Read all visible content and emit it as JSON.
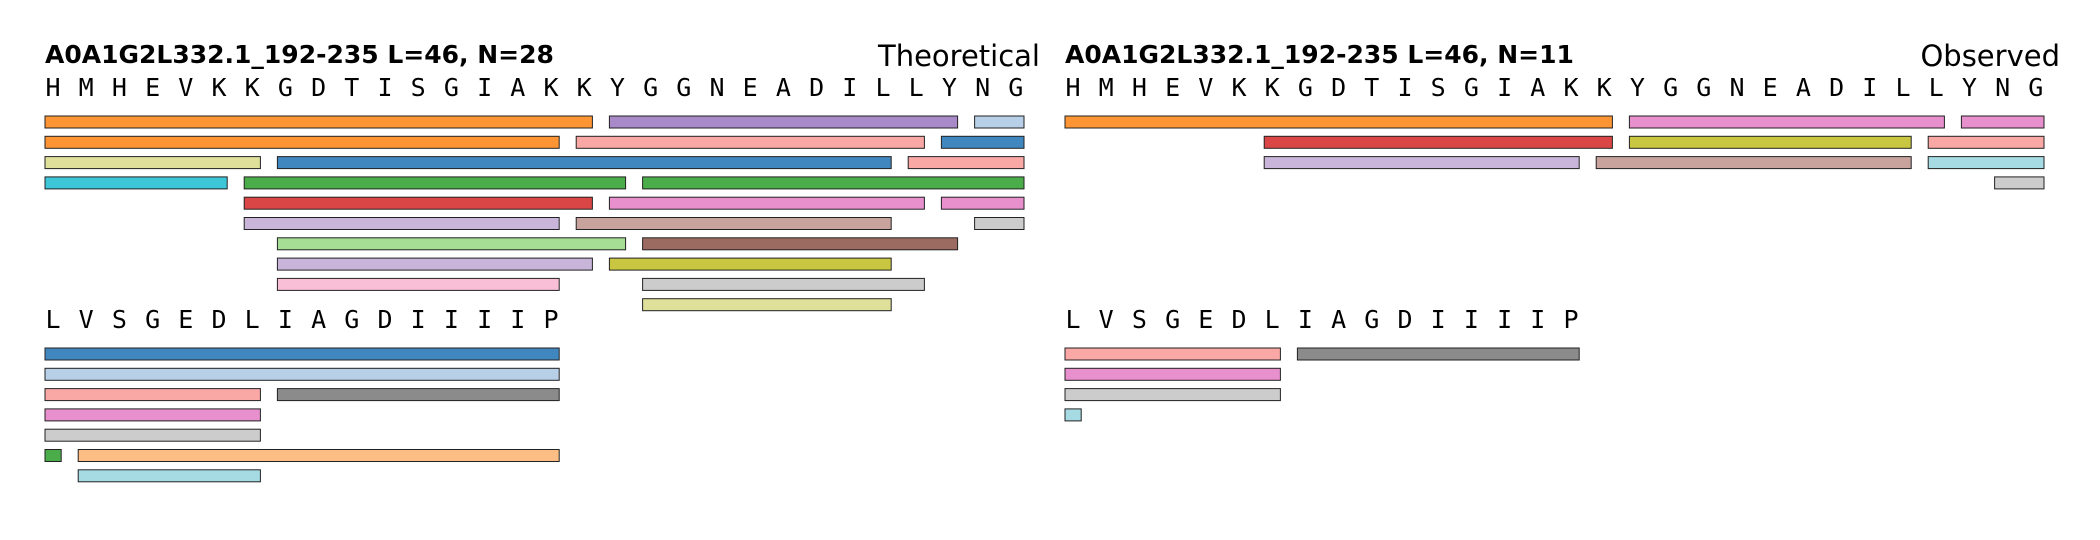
{
  "colors": {
    "orange": "#fd9535",
    "purple": "#a88ac8",
    "lightblue": "#b8cfe8",
    "salmon": "#f9a8a6",
    "blue": "#4187bf",
    "khaki": "#dfe09a",
    "cyan": "#3cc6d7",
    "green": "#4bad4a",
    "red": "#da4646",
    "pink": "#e88fcd",
    "lavender": "#c9b5da",
    "rosybrown": "#c8a39d",
    "lightgray": "#cccccc",
    "lightgreen": "#a7de95",
    "brown": "#9b6a60",
    "olive": "#c9c741",
    "lightpink": "#f8bfd6",
    "gray": "#8b8b8b",
    "peach": "#fcbe84",
    "paleblue": "#a6dbe4"
  },
  "panels": [
    {
      "id": "theoretical",
      "header": "A0A1G2L332.1_192-235  L=46, N=28",
      "label": "Theoretical",
      "lines": [
        {
          "residues": [
            "H",
            "M",
            "H",
            "E",
            "V",
            "K",
            "K",
            "G",
            "D",
            "T",
            "I",
            "S",
            "G",
            "I",
            "A",
            "K",
            "K",
            "Y",
            "G",
            "G",
            "N",
            "E",
            "A",
            "D",
            "I",
            "L",
            "L",
            "Y",
            "N",
            "G"
          ],
          "bars": [
            {
              "row": 0,
              "start": 1,
              "end": 17,
              "color": "orange"
            },
            {
              "row": 0,
              "start": 18,
              "end": 28,
              "color": "purple"
            },
            {
              "row": 0,
              "start": 29,
              "end": 30,
              "color": "lightblue"
            },
            {
              "row": 1,
              "start": 1,
              "end": 16,
              "color": "orange"
            },
            {
              "row": 1,
              "start": 17,
              "end": 27,
              "color": "salmon"
            },
            {
              "row": 1,
              "start": 28,
              "end": 30,
              "color": "blue"
            },
            {
              "row": 2,
              "start": 1,
              "end": 7,
              "color": "khaki"
            },
            {
              "row": 2,
              "start": 8,
              "end": 26,
              "color": "blue"
            },
            {
              "row": 2,
              "start": 27,
              "end": 30,
              "color": "salmon"
            },
            {
              "row": 3,
              "start": 1,
              "end": 6,
              "color": "cyan"
            },
            {
              "row": 3,
              "start": 7,
              "end": 18,
              "color": "green"
            },
            {
              "row": 3,
              "start": 19,
              "end": 30,
              "color": "green"
            },
            {
              "row": 4,
              "start": 7,
              "end": 17,
              "color": "red"
            },
            {
              "row": 4,
              "start": 18,
              "end": 27,
              "color": "pink"
            },
            {
              "row": 4,
              "start": 28,
              "end": 30,
              "color": "pink"
            },
            {
              "row": 5,
              "start": 7,
              "end": 16,
              "color": "lavender"
            },
            {
              "row": 5,
              "start": 17,
              "end": 26,
              "color": "rosybrown"
            },
            {
              "row": 5,
              "start": 29,
              "end": 30,
              "color": "lightgray"
            },
            {
              "row": 6,
              "start": 8,
              "end": 18,
              "color": "lightgreen"
            },
            {
              "row": 6,
              "start": 19,
              "end": 28,
              "color": "brown"
            },
            {
              "row": 7,
              "start": 8,
              "end": 17,
              "color": "lavender"
            },
            {
              "row": 7,
              "start": 18,
              "end": 26,
              "color": "olive"
            },
            {
              "row": 8,
              "start": 8,
              "end": 16,
              "color": "lightpink"
            },
            {
              "row": 8,
              "start": 19,
              "end": 27,
              "color": "lightgray"
            },
            {
              "row": 9,
              "start": 19,
              "end": 26,
              "color": "khaki"
            }
          ]
        },
        {
          "residues": [
            "L",
            "V",
            "S",
            "G",
            "E",
            "D",
            "L",
            "I",
            "A",
            "G",
            "D",
            "I",
            "I",
            "I",
            "I",
            "P"
          ],
          "bars": [
            {
              "row": 0,
              "start": 1,
              "end": 16,
              "color": "blue"
            },
            {
              "row": 1,
              "start": 1,
              "end": 16,
              "color": "lightblue"
            },
            {
              "row": 2,
              "start": 1,
              "end": 7,
              "color": "salmon"
            },
            {
              "row": 2,
              "start": 8,
              "end": 16,
              "color": "gray"
            },
            {
              "row": 3,
              "start": 1,
              "end": 7,
              "color": "pink"
            },
            {
              "row": 4,
              "start": 1,
              "end": 7,
              "color": "lightgray"
            },
            {
              "row": 5,
              "start": 1,
              "end": 1,
              "color": "green"
            },
            {
              "row": 5,
              "start": 2,
              "end": 16,
              "color": "peach"
            },
            {
              "row": 6,
              "start": 2,
              "end": 7,
              "color": "paleblue"
            }
          ]
        }
      ]
    },
    {
      "id": "observed",
      "header": "A0A1G2L332.1_192-235  L=46, N=11",
      "label": "Observed",
      "lines": [
        {
          "residues": [
            "H",
            "M",
            "H",
            "E",
            "V",
            "K",
            "K",
            "G",
            "D",
            "T",
            "I",
            "S",
            "G",
            "I",
            "A",
            "K",
            "K",
            "Y",
            "G",
            "G",
            "N",
            "E",
            "A",
            "D",
            "I",
            "L",
            "L",
            "Y",
            "N",
            "G"
          ],
          "bars": [
            {
              "row": 0,
              "start": 1,
              "end": 17,
              "color": "orange"
            },
            {
              "row": 0,
              "start": 18,
              "end": 27,
              "color": "pink"
            },
            {
              "row": 0,
              "start": 28,
              "end": 30,
              "color": "pink"
            },
            {
              "row": 1,
              "start": 7,
              "end": 17,
              "color": "red"
            },
            {
              "row": 1,
              "start": 18,
              "end": 26,
              "color": "olive"
            },
            {
              "row": 1,
              "start": 27,
              "end": 30,
              "color": "salmon"
            },
            {
              "row": 2,
              "start": 7,
              "end": 16,
              "color": "lavender"
            },
            {
              "row": 2,
              "start": 17,
              "end": 26,
              "color": "rosybrown"
            },
            {
              "row": 2,
              "start": 27,
              "end": 30,
              "color": "paleblue"
            },
            {
              "row": 3,
              "start": 29,
              "end": 30,
              "color": "lightgray"
            }
          ]
        },
        {
          "residues": [
            "L",
            "V",
            "S",
            "G",
            "E",
            "D",
            "L",
            "I",
            "A",
            "G",
            "D",
            "I",
            "I",
            "I",
            "I",
            "P"
          ],
          "bars": [
            {
              "row": 0,
              "start": 1,
              "end": 7,
              "color": "salmon"
            },
            {
              "row": 0,
              "start": 8,
              "end": 16,
              "color": "gray"
            },
            {
              "row": 1,
              "start": 1,
              "end": 7,
              "color": "pink"
            },
            {
              "row": 2,
              "start": 1,
              "end": 7,
              "color": "lightgray"
            },
            {
              "row": 3,
              "start": 1,
              "end": 1,
              "color": "paleblue"
            }
          ]
        }
      ]
    }
  ]
}
